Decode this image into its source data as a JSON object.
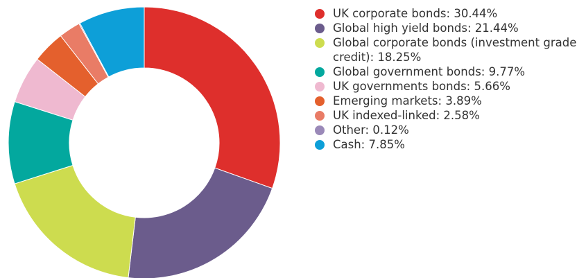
{
  "chart_data": {
    "type": "pie",
    "donut": true,
    "legend_position": "right",
    "slices": [
      {
        "label": "UK corporate bonds: 30.44%",
        "value": 30.44,
        "color": "#de2f2c"
      },
      {
        "label": "Global high yield bonds: 21.44%",
        "value": 21.44,
        "color": "#6b5c8c"
      },
      {
        "label": "Global corporate bonds (investment grade credit): 18.25%",
        "value": 18.25,
        "color": "#cddc4f"
      },
      {
        "label": "Global government bonds: 9.77%",
        "value": 9.77,
        "color": "#03a89e"
      },
      {
        "label": "UK governments bonds: 5.66%",
        "value": 5.66,
        "color": "#efb9d0"
      },
      {
        "label": "Emerging markets: 3.89%",
        "value": 3.89,
        "color": "#e4602d"
      },
      {
        "label": "UK indexed-linked: 2.58%",
        "value": 2.58,
        "color": "#e97c66"
      },
      {
        "label": "Other: 0.12%",
        "value": 0.12,
        "color": "#9a89b8"
      },
      {
        "label": "Cash: 7.85%",
        "value": 7.85,
        "color": "#0d9fd8"
      }
    ]
  }
}
